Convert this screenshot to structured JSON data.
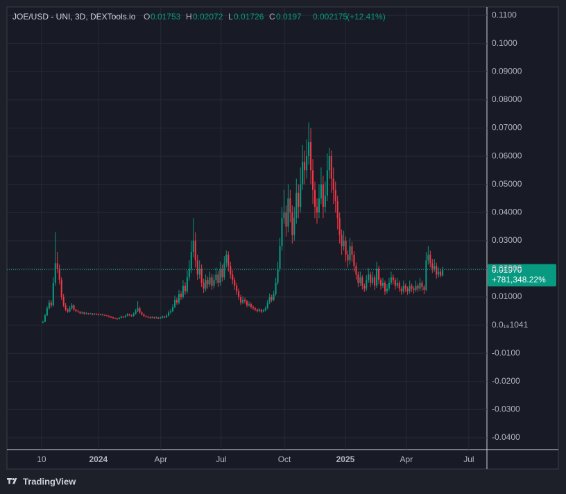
{
  "chart_data": {
    "type": "candlestick",
    "title": "JOE/USD - UNI, 3D, DEXTools.io",
    "ohlc_labels": [
      "O",
      "H",
      "L",
      "C"
    ],
    "change": 0.002175,
    "change_label": "(+12.41%)",
    "last_price": {
      "value": 0.0197,
      "label": "0.01970"
    },
    "last_change": "+781,348.22%",
    "up_color": "#089981",
    "down_color": "#f23645",
    "grid": true,
    "ylim": [
      -0.0442,
      0.113
    ],
    "yticks": [
      {
        "value": 0.11,
        "label": "0.1100"
      },
      {
        "value": 0.1,
        "label": "0.1000"
      },
      {
        "value": 0.09,
        "label": "0.09000"
      },
      {
        "value": 0.08,
        "label": "0.08000"
      },
      {
        "value": 0.07,
        "label": "0.07000"
      },
      {
        "value": 0.06,
        "label": "0.06000"
      },
      {
        "value": 0.05,
        "label": "0.05000"
      },
      {
        "value": 0.04,
        "label": "0.04000"
      },
      {
        "value": 0.03,
        "label": "0.03000"
      },
      {
        "value": 0.02,
        "label": "0.02000"
      },
      {
        "value": 0.01,
        "label": "0.01000"
      },
      {
        "value": 1.041e-20,
        "label": "0.0₁₆1041"
      },
      {
        "value": -0.01,
        "label": "-0.0100"
      },
      {
        "value": -0.02,
        "label": "-0.0200"
      },
      {
        "value": -0.03,
        "label": "-0.0300"
      },
      {
        "value": -0.04,
        "label": "-0.0400"
      }
    ],
    "xlim": [
      -17.5,
      215.5
    ],
    "xticks": [
      {
        "value": -0.7,
        "label": "10"
      },
      {
        "value": 26.9,
        "label": "2024"
      },
      {
        "value": 57.2,
        "label": "Apr"
      },
      {
        "value": 86.5,
        "label": "Jul"
      },
      {
        "value": 117.2,
        "label": "Oct"
      },
      {
        "value": 146.8,
        "label": "2025"
      },
      {
        "value": 176.4,
        "label": "Apr"
      },
      {
        "value": 206.7,
        "label": "Jul"
      }
    ],
    "candles": [
      [
        0.0008,
        0.0015,
        0.0007,
        0.0012
      ],
      [
        0.0012,
        0.004,
        0.0011,
        0.0035
      ],
      [
        0.0035,
        0.0068,
        0.0032,
        0.006
      ],
      [
        0.006,
        0.009,
        0.0055,
        0.008
      ],
      [
        0.008,
        0.0088,
        0.0062,
        0.007
      ],
      [
        0.007,
        0.017,
        0.0066,
        0.015
      ],
      [
        0.015,
        0.033,
        0.014,
        0.022
      ],
      [
        0.022,
        0.026,
        0.0185,
        0.02
      ],
      [
        0.02,
        0.0215,
        0.0145,
        0.016
      ],
      [
        0.016,
        0.017,
        0.009,
        0.01
      ],
      [
        0.01,
        0.011,
        0.0064,
        0.007
      ],
      [
        0.007,
        0.0078,
        0.005,
        0.0055
      ],
      [
        0.0055,
        0.006,
        0.0044,
        0.0048
      ],
      [
        0.0048,
        0.0068,
        0.0045,
        0.006
      ],
      [
        0.006,
        0.0078,
        0.0055,
        0.007
      ],
      [
        0.007,
        0.0074,
        0.005,
        0.0055
      ],
      [
        0.0055,
        0.0058,
        0.0046,
        0.005
      ],
      [
        0.005,
        0.0054,
        0.0044,
        0.0048
      ],
      [
        0.0048,
        0.005,
        0.0039,
        0.0042
      ],
      [
        0.0042,
        0.0049,
        0.004,
        0.0045
      ],
      [
        0.0045,
        0.0047,
        0.0037,
        0.004
      ],
      [
        0.004,
        0.0046,
        0.0038,
        0.0042
      ],
      [
        0.0042,
        0.0044,
        0.0037,
        0.004
      ],
      [
        0.004,
        0.0044,
        0.0038,
        0.0041
      ],
      [
        0.0041,
        0.0043,
        0.0035,
        0.0038
      ],
      [
        0.0038,
        0.0043,
        0.0036,
        0.004
      ],
      [
        0.004,
        0.0042,
        0.0036,
        0.0039
      ],
      [
        0.0039,
        0.0041,
        0.0034,
        0.0037
      ],
      [
        0.0037,
        0.0041,
        0.0035,
        0.0038
      ],
      [
        0.0038,
        0.004,
        0.0033,
        0.0036
      ],
      [
        0.0036,
        0.0039,
        0.0032,
        0.0035
      ],
      [
        0.0035,
        0.0037,
        0.003,
        0.0033
      ],
      [
        0.0033,
        0.0035,
        0.0027,
        0.003
      ],
      [
        0.003,
        0.0032,
        0.0025,
        0.0028
      ],
      [
        0.0028,
        0.003,
        0.0022,
        0.0025
      ],
      [
        0.0025,
        0.0027,
        0.0021,
        0.0024
      ],
      [
        0.0024,
        0.0026,
        0.0019,
        0.0022
      ],
      [
        0.0022,
        0.0029,
        0.002,
        0.0026
      ],
      [
        0.0026,
        0.0034,
        0.0024,
        0.003
      ],
      [
        0.003,
        0.0032,
        0.0025,
        0.0028
      ],
      [
        0.0028,
        0.0037,
        0.0026,
        0.0033
      ],
      [
        0.0033,
        0.0043,
        0.0031,
        0.0038
      ],
      [
        0.0038,
        0.0041,
        0.0032,
        0.0035
      ],
      [
        0.0035,
        0.0038,
        0.0029,
        0.0032
      ],
      [
        0.0032,
        0.0045,
        0.003,
        0.004
      ],
      [
        0.004,
        0.0058,
        0.0037,
        0.005
      ],
      [
        0.005,
        0.0085,
        0.0046,
        0.006
      ],
      [
        0.006,
        0.0066,
        0.0041,
        0.0045
      ],
      [
        0.0045,
        0.0049,
        0.0034,
        0.0038
      ],
      [
        0.0038,
        0.0041,
        0.0029,
        0.0032
      ],
      [
        0.0032,
        0.0035,
        0.0027,
        0.003
      ],
      [
        0.003,
        0.0033,
        0.0025,
        0.0028
      ],
      [
        0.0028,
        0.0031,
        0.0023,
        0.0026
      ],
      [
        0.0026,
        0.0032,
        0.0024,
        0.0028
      ],
      [
        0.0028,
        0.003,
        0.0022,
        0.0025
      ],
      [
        0.0025,
        0.0031,
        0.0023,
        0.0027
      ],
      [
        0.0027,
        0.0029,
        0.0021,
        0.0024
      ],
      [
        0.0024,
        0.003,
        0.0022,
        0.0026
      ],
      [
        0.0026,
        0.0034,
        0.0024,
        0.003
      ],
      [
        0.003,
        0.0033,
        0.0025,
        0.0028
      ],
      [
        0.0028,
        0.0039,
        0.0026,
        0.0034
      ],
      [
        0.0034,
        0.0052,
        0.0031,
        0.0045
      ],
      [
        0.0045,
        0.0058,
        0.004,
        0.005
      ],
      [
        0.005,
        0.0075,
        0.0046,
        0.0065
      ],
      [
        0.0065,
        0.0105,
        0.006,
        0.009
      ],
      [
        0.009,
        0.0098,
        0.0072,
        0.008
      ],
      [
        0.008,
        0.0125,
        0.0074,
        0.011
      ],
      [
        0.011,
        0.012,
        0.009,
        0.01
      ],
      [
        0.01,
        0.016,
        0.0094,
        0.014
      ],
      [
        0.014,
        0.0152,
        0.0108,
        0.012
      ],
      [
        0.012,
        0.0195,
        0.0112,
        0.017
      ],
      [
        0.017,
        0.023,
        0.0158,
        0.02
      ],
      [
        0.02,
        0.03,
        0.0185,
        0.026
      ],
      [
        0.026,
        0.038,
        0.024,
        0.03
      ],
      [
        0.03,
        0.033,
        0.0205,
        0.023
      ],
      [
        0.023,
        0.025,
        0.016,
        0.018
      ],
      [
        0.018,
        0.023,
        0.0165,
        0.02
      ],
      [
        0.02,
        0.0215,
        0.0135,
        0.015
      ],
      [
        0.015,
        0.0165,
        0.0115,
        0.013
      ],
      [
        0.013,
        0.018,
        0.012,
        0.016
      ],
      [
        0.016,
        0.0172,
        0.013,
        0.0145
      ],
      [
        0.0145,
        0.019,
        0.0135,
        0.017
      ],
      [
        0.017,
        0.0182,
        0.0125,
        0.014
      ],
      [
        0.014,
        0.018,
        0.013,
        0.016
      ],
      [
        0.016,
        0.0205,
        0.0148,
        0.018
      ],
      [
        0.018,
        0.0192,
        0.0135,
        0.015
      ],
      [
        0.015,
        0.0225,
        0.014,
        0.02
      ],
      [
        0.02,
        0.0215,
        0.0155,
        0.017
      ],
      [
        0.017,
        0.0245,
        0.016,
        0.022
      ],
      [
        0.022,
        0.0265,
        0.0205,
        0.025
      ],
      [
        0.025,
        0.0262,
        0.019,
        0.021
      ],
      [
        0.021,
        0.0225,
        0.0165,
        0.018
      ],
      [
        0.018,
        0.0195,
        0.0145,
        0.016
      ],
      [
        0.016,
        0.017,
        0.0125,
        0.014
      ],
      [
        0.014,
        0.015,
        0.0108,
        0.012
      ],
      [
        0.012,
        0.013,
        0.009,
        0.01
      ],
      [
        0.01,
        0.0108,
        0.0072,
        0.008
      ],
      [
        0.008,
        0.0102,
        0.0075,
        0.009
      ],
      [
        0.009,
        0.0098,
        0.0077,
        0.0085
      ],
      [
        0.0085,
        0.009,
        0.0063,
        0.007
      ],
      [
        0.007,
        0.0084,
        0.0066,
        0.0075
      ],
      [
        0.0075,
        0.008,
        0.0059,
        0.0065
      ],
      [
        0.0065,
        0.007,
        0.0054,
        0.006
      ],
      [
        0.006,
        0.0064,
        0.005,
        0.0055
      ],
      [
        0.0055,
        0.0059,
        0.0045,
        0.005
      ],
      [
        0.005,
        0.0061,
        0.0047,
        0.0055
      ],
      [
        0.0055,
        0.0058,
        0.0043,
        0.0048
      ],
      [
        0.0048,
        0.0058,
        0.0045,
        0.0052
      ],
      [
        0.0052,
        0.0067,
        0.0049,
        0.006
      ],
      [
        0.006,
        0.009,
        0.0056,
        0.008
      ],
      [
        0.008,
        0.0112,
        0.0075,
        0.01
      ],
      [
        0.01,
        0.0108,
        0.0082,
        0.009
      ],
      [
        0.009,
        0.0122,
        0.0085,
        0.011
      ],
      [
        0.011,
        0.0168,
        0.0104,
        0.015
      ],
      [
        0.015,
        0.0225,
        0.0142,
        0.02
      ],
      [
        0.02,
        0.031,
        0.019,
        0.028
      ],
      [
        0.028,
        0.042,
        0.0265,
        0.038
      ],
      [
        0.038,
        0.048,
        0.036,
        0.04
      ],
      [
        0.04,
        0.0425,
        0.0315,
        0.035
      ],
      [
        0.035,
        0.05,
        0.033,
        0.045
      ],
      [
        0.045,
        0.048,
        0.0365,
        0.04
      ],
      [
        0.04,
        0.0425,
        0.029,
        0.032
      ],
      [
        0.032,
        0.042,
        0.03,
        0.038
      ],
      [
        0.038,
        0.052,
        0.036,
        0.047
      ],
      [
        0.047,
        0.05,
        0.038,
        0.042
      ],
      [
        0.042,
        0.056,
        0.04,
        0.05
      ],
      [
        0.05,
        0.064,
        0.048,
        0.058
      ],
      [
        0.058,
        0.062,
        0.05,
        0.055
      ],
      [
        0.055,
        0.066,
        0.052,
        0.06
      ],
      [
        0.06,
        0.072,
        0.057,
        0.065
      ],
      [
        0.065,
        0.07,
        0.05,
        0.055
      ],
      [
        0.055,
        0.059,
        0.043,
        0.048
      ],
      [
        0.048,
        0.051,
        0.038,
        0.042
      ],
      [
        0.042,
        0.045,
        0.036,
        0.04
      ],
      [
        0.04,
        0.05,
        0.038,
        0.045
      ],
      [
        0.045,
        0.056,
        0.043,
        0.05
      ],
      [
        0.05,
        0.053,
        0.038,
        0.042
      ],
      [
        0.042,
        0.051,
        0.04,
        0.046
      ],
      [
        0.046,
        0.061,
        0.044,
        0.055
      ],
      [
        0.055,
        0.063,
        0.052,
        0.06
      ],
      [
        0.06,
        0.062,
        0.047,
        0.052
      ],
      [
        0.052,
        0.056,
        0.043,
        0.048
      ],
      [
        0.048,
        0.051,
        0.04,
        0.044
      ],
      [
        0.044,
        0.046,
        0.034,
        0.038
      ],
      [
        0.038,
        0.04,
        0.029,
        0.032
      ],
      [
        0.032,
        0.034,
        0.025,
        0.028
      ],
      [
        0.028,
        0.0335,
        0.0265,
        0.03
      ],
      [
        0.03,
        0.0315,
        0.0225,
        0.025
      ],
      [
        0.025,
        0.0265,
        0.0205,
        0.023
      ],
      [
        0.023,
        0.031,
        0.0215,
        0.028
      ],
      [
        0.028,
        0.0295,
        0.0225,
        0.025
      ],
      [
        0.025,
        0.0262,
        0.019,
        0.021
      ],
      [
        0.021,
        0.0222,
        0.0162,
        0.018
      ],
      [
        0.018,
        0.019,
        0.0135,
        0.015
      ],
      [
        0.015,
        0.019,
        0.014,
        0.017
      ],
      [
        0.017,
        0.0178,
        0.0126,
        0.014
      ],
      [
        0.014,
        0.0148,
        0.0118,
        0.013
      ],
      [
        0.013,
        0.0178,
        0.0122,
        0.016
      ],
      [
        0.016,
        0.0202,
        0.015,
        0.018
      ],
      [
        0.018,
        0.019,
        0.0135,
        0.015
      ],
      [
        0.015,
        0.019,
        0.0142,
        0.017
      ],
      [
        0.017,
        0.0178,
        0.0125,
        0.014
      ],
      [
        0.014,
        0.0225,
        0.0132,
        0.02
      ],
      [
        0.02,
        0.021,
        0.0145,
        0.016
      ],
      [
        0.016,
        0.0168,
        0.0126,
        0.014
      ],
      [
        0.014,
        0.0168,
        0.0132,
        0.015
      ],
      [
        0.015,
        0.0158,
        0.0108,
        0.012
      ],
      [
        0.012,
        0.0146,
        0.0112,
        0.013
      ],
      [
        0.013,
        0.0168,
        0.0122,
        0.015
      ],
      [
        0.015,
        0.019,
        0.0142,
        0.017
      ],
      [
        0.017,
        0.018,
        0.0145,
        0.016
      ],
      [
        0.016,
        0.0168,
        0.0126,
        0.014
      ],
      [
        0.014,
        0.0168,
        0.0132,
        0.015
      ],
      [
        0.015,
        0.0158,
        0.0118,
        0.013
      ],
      [
        0.013,
        0.0138,
        0.0108,
        0.012
      ],
      [
        0.012,
        0.0158,
        0.0112,
        0.014
      ],
      [
        0.014,
        0.0148,
        0.0118,
        0.013
      ],
      [
        0.013,
        0.0138,
        0.0108,
        0.012
      ],
      [
        0.012,
        0.0158,
        0.0112,
        0.014
      ],
      [
        0.014,
        0.0148,
        0.0118,
        0.013
      ],
      [
        0.013,
        0.0138,
        0.0112,
        0.0125
      ],
      [
        0.0125,
        0.0158,
        0.0118,
        0.014
      ],
      [
        0.014,
        0.0148,
        0.0118,
        0.013
      ],
      [
        0.013,
        0.0168,
        0.0122,
        0.015
      ],
      [
        0.015,
        0.0158,
        0.0122,
        0.0135
      ],
      [
        0.0135,
        0.0142,
        0.011,
        0.0125
      ],
      [
        0.0125,
        0.026,
        0.012,
        0.023
      ],
      [
        0.023,
        0.028,
        0.0215,
        0.025
      ],
      [
        0.025,
        0.0265,
        0.0205,
        0.022
      ],
      [
        0.022,
        0.0235,
        0.0185,
        0.02
      ],
      [
        0.02,
        0.0235,
        0.019,
        0.021
      ],
      [
        0.021,
        0.0222,
        0.0165,
        0.018
      ],
      [
        0.018,
        0.0205,
        0.017,
        0.019
      ],
      [
        0.019,
        0.02,
        0.017,
        0.01753
      ],
      [
        0.01753,
        0.02072,
        0.01726,
        0.0197
      ]
    ]
  },
  "footer": {
    "brand": "TradingView"
  }
}
